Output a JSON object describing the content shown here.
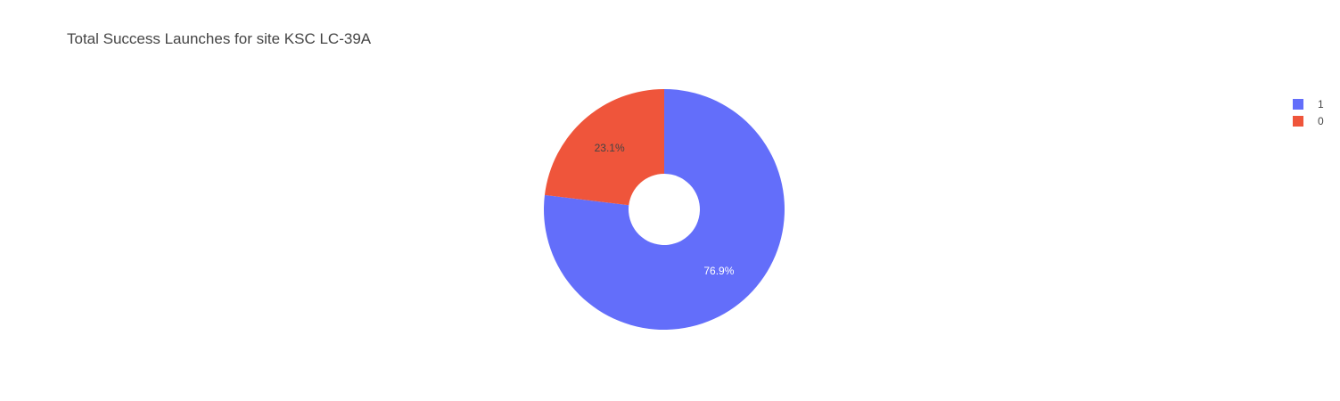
{
  "chart_data": {
    "type": "pie",
    "hole": true,
    "title": "Total Success Launches for site KSC LC-39A",
    "slices": [
      {
        "label": "1",
        "percent": 76.9,
        "percent_text": "76.9%",
        "color": "#636efa",
        "text_color": "#ffffff"
      },
      {
        "label": "0",
        "percent": 23.1,
        "percent_text": "23.1%",
        "color": "#ef553b",
        "text_color": "#444444"
      }
    ],
    "legend_position": "top-right"
  }
}
